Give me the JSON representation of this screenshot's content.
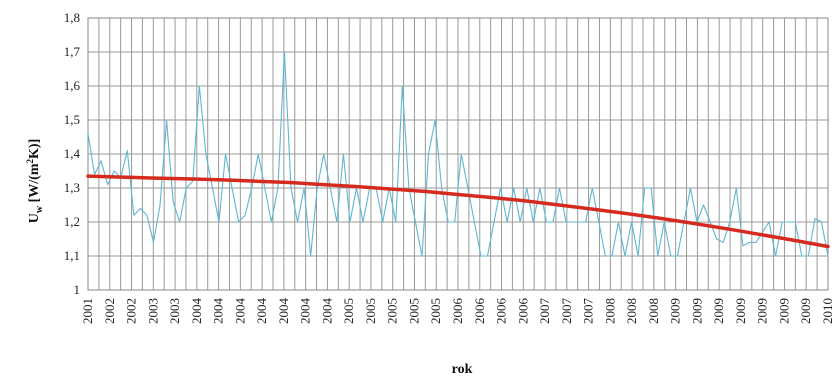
{
  "chart_data": {
    "type": "line",
    "title": "",
    "xlabel": "rok",
    "ylabel_main": "U",
    "ylabel_sub": "w",
    "ylabel_unit_pre": " [W/(m",
    "ylabel_unit_sup": "2",
    "ylabel_unit_post": "K)]",
    "ylim": [
      1.0,
      1.8
    ],
    "ytick_values": [
      1,
      1.1,
      1.2,
      1.3,
      1.4,
      1.5,
      1.6,
      1.7,
      1.8
    ],
    "ytick_labels": [
      "1",
      "1,1",
      "1,2",
      "1,3",
      "1,4",
      "1,5",
      "1,6",
      "1,7",
      "1,8"
    ],
    "xtick_labels": [
      "2001",
      "2002",
      "2002",
      "2003",
      "2003",
      "2004",
      "2004",
      "2004",
      "2004",
      "2004",
      "2004",
      "2004",
      "2005",
      "2005",
      "2005",
      "2005",
      "2005",
      "2006",
      "2006",
      "2006",
      "2006",
      "2007",
      "2007",
      "2007",
      "2008",
      "2008",
      "2008",
      "2009",
      "2009",
      "2009",
      "2009",
      "2009",
      "2009",
      "2009",
      "2010"
    ],
    "grid": true,
    "series": [
      {
        "color": "#5fb6d3",
        "values": [
          1.46,
          1.34,
          1.38,
          1.31,
          1.35,
          1.33,
          1.41,
          1.22,
          1.24,
          1.22,
          1.14,
          1.25,
          1.5,
          1.26,
          1.2,
          1.3,
          1.32,
          1.6,
          1.4,
          1.3,
          1.2,
          1.4,
          1.3,
          1.2,
          1.22,
          1.3,
          1.4,
          1.3,
          1.2,
          1.3,
          1.7,
          1.3,
          1.2,
          1.3,
          1.1,
          1.3,
          1.4,
          1.3,
          1.2,
          1.4,
          1.2,
          1.3,
          1.2,
          1.3,
          1.3,
          1.2,
          1.3,
          1.2,
          1.6,
          1.3,
          1.2,
          1.1,
          1.4,
          1.5,
          1.3,
          1.2,
          1.2,
          1.4,
          1.3,
          1.2,
          1.1,
          1.1,
          1.2,
          1.3,
          1.2,
          1.3,
          1.2,
          1.3,
          1.2,
          1.3,
          1.2,
          1.2,
          1.3,
          1.2,
          1.2,
          1.2,
          1.2,
          1.3,
          1.2,
          1.1,
          1.1,
          1.2,
          1.1,
          1.2,
          1.1,
          1.3,
          1.3,
          1.1,
          1.2,
          1.1,
          1.1,
          1.2,
          1.3,
          1.2,
          1.25,
          1.2,
          1.15,
          1.14,
          1.2,
          1.3,
          1.13,
          1.14,
          1.14,
          1.17,
          1.2,
          1.1,
          1.2,
          1.2,
          1.2,
          1.1,
          1.1,
          1.21,
          1.2,
          1.1
        ]
      },
      {
        "color": "#d62a1e",
        "values": [
          1.335,
          1.332,
          1.329,
          1.327,
          1.324,
          1.32,
          1.316,
          1.31,
          1.304,
          1.297,
          1.29,
          1.281,
          1.272,
          1.262,
          1.25,
          1.238,
          1.225,
          1.211,
          1.196,
          1.18,
          1.163,
          1.146,
          1.128
        ]
      }
    ]
  }
}
